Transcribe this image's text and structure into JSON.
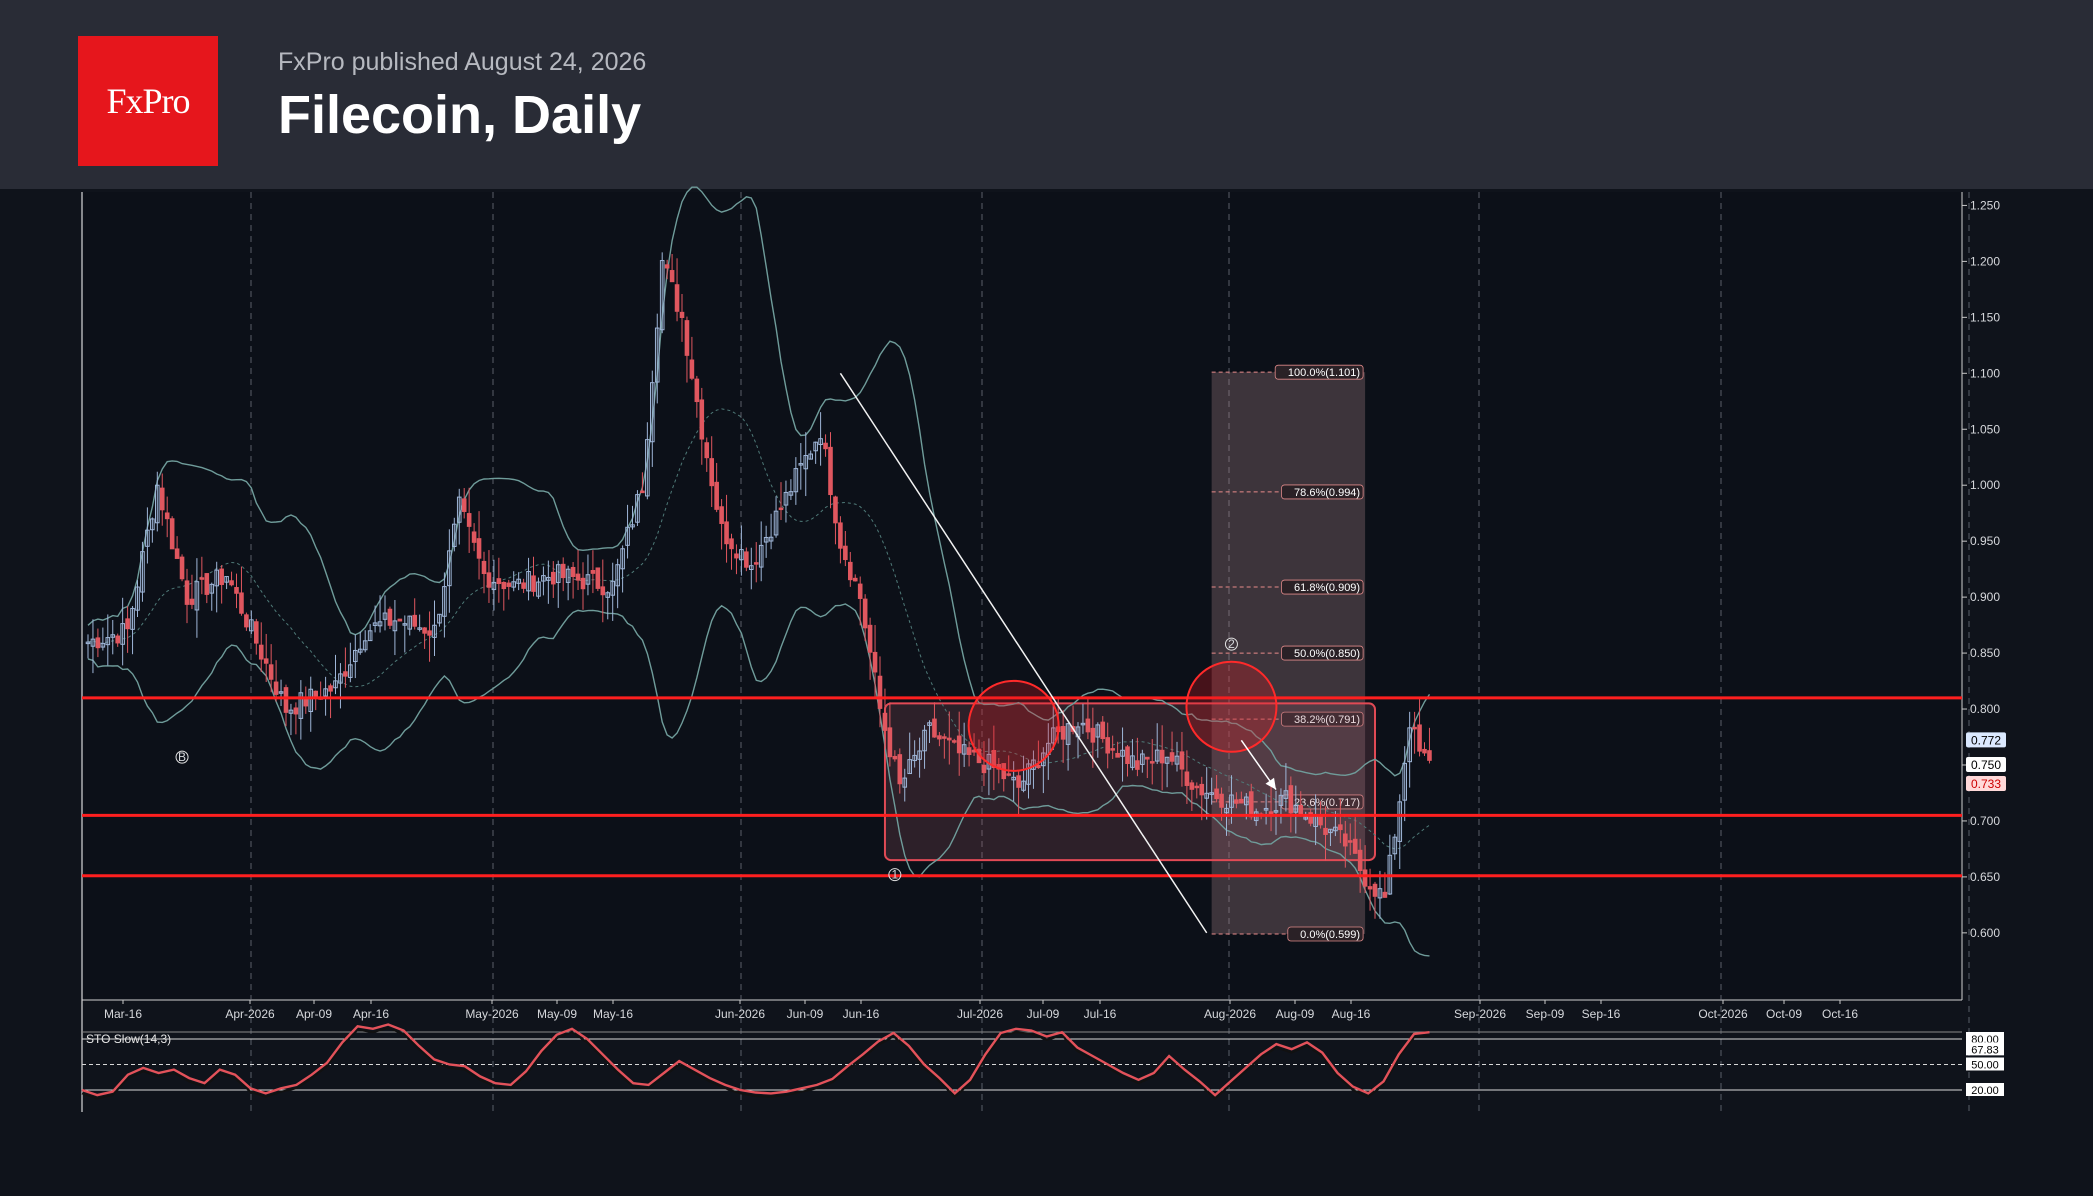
{
  "header": {
    "logo_text": "FxPro",
    "published": "FxPro published August 24, 2026",
    "title": "Filecoin, Daily"
  },
  "colors": {
    "background": "#0f131b",
    "header": "#292c36",
    "brand_red": "#e6161c",
    "bull": "#9fb6d8",
    "bear": "#e0575f",
    "band": "#6f9c9a",
    "level": "#ff1f1f"
  },
  "chart_data": [
    {
      "type": "candlestick",
      "title": "Filecoin, Daily",
      "ylim": [
        0.54,
        1.262
      ],
      "y_ticks": [
        "1.250",
        "1.200",
        "1.150",
        "1.100",
        "1.050",
        "1.000",
        "0.950",
        "0.900",
        "0.850",
        "0.800",
        "0.750",
        "0.700",
        "0.650",
        "0.600"
      ],
      "x_ticks": [
        "Mar-16",
        "Apr-2026",
        "Apr-09",
        "Apr-16",
        "May-2026",
        "May-09",
        "May-16",
        "Jun-2026",
        "Jun-09",
        "Jun-16",
        "Jul-2026",
        "Jul-09",
        "Jul-16",
        "Aug-2026",
        "Aug-09",
        "Aug-16",
        "Sep-2026",
        "Sep-09",
        "Sep-16",
        "Oct-2026",
        "Oct-09",
        "Oct-16"
      ],
      "close_path": [
        [
          0,
          0.86
        ],
        [
          8,
          0.87
        ],
        [
          14,
          1.0
        ],
        [
          20,
          0.9
        ],
        [
          28,
          0.92
        ],
        [
          34,
          0.86
        ],
        [
          40,
          0.8
        ],
        [
          50,
          0.82
        ],
        [
          56,
          0.87
        ],
        [
          62,
          0.88
        ],
        [
          70,
          0.87
        ],
        [
          75,
          0.98
        ],
        [
          80,
          0.92
        ],
        [
          86,
          0.91
        ],
        [
          94,
          0.92
        ],
        [
          100,
          0.915
        ],
        [
          106,
          0.91
        ],
        [
          112,
          1.0
        ],
        [
          116,
          1.2
        ],
        [
          120,
          1.15
        ],
        [
          124,
          1.05
        ],
        [
          128,
          0.96
        ],
        [
          134,
          0.93
        ],
        [
          140,
          0.98
        ],
        [
          148,
          1.05
        ],
        [
          152,
          0.95
        ],
        [
          156,
          0.9
        ],
        [
          160,
          0.8
        ],
        [
          164,
          0.73
        ],
        [
          170,
          0.78
        ],
        [
          176,
          0.76
        ],
        [
          182,
          0.75
        ],
        [
          188,
          0.73
        ],
        [
          194,
          0.77
        ],
        [
          200,
          0.79
        ],
        [
          206,
          0.77
        ],
        [
          212,
          0.75
        ],
        [
          218,
          0.76
        ],
        [
          224,
          0.73
        ],
        [
          230,
          0.72
        ],
        [
          236,
          0.71
        ],
        [
          242,
          0.72
        ],
        [
          248,
          0.7
        ],
        [
          254,
          0.68
        ],
        [
          258,
          0.65
        ],
        [
          262,
          0.63
        ],
        [
          265,
          0.72
        ],
        [
          267,
          0.79
        ],
        [
          269,
          0.76
        ],
        [
          271,
          0.75
        ]
      ],
      "annotations": {
        "horizontal_levels": [
          0.81,
          0.705,
          0.651
        ],
        "range_box": {
          "x": [
            161,
            260
          ],
          "y": [
            0.665,
            0.805
          ]
        },
        "fib_projection": {
          "x": [
            227,
            258
          ],
          "levels": [
            {
              "value": 1.101,
              "label": "100.0%(1.101)"
            },
            {
              "value": 0.994,
              "label": "78.6%(0.994)"
            },
            {
              "value": 0.909,
              "label": "61.8%(0.909)"
            },
            {
              "value": 0.85,
              "label": "50.0%(0.850)"
            },
            {
              "value": 0.791,
              "label": "38.2%(0.791)"
            },
            {
              "value": 0.717,
              "label": "23.6%(0.717)"
            },
            {
              "value": 0.599,
              "label": "0.0%(0.599)"
            }
          ]
        },
        "trendline": {
          "from": [
            152,
            1.1
          ],
          "to": [
            226,
            0.6
          ]
        },
        "circles": [
          {
            "x": 187,
            "y": 0.785
          },
          {
            "x": 231,
            "y": 0.802
          }
        ],
        "wave_labels": [
          {
            "text": "B",
            "x": 19,
            "y": 0.757
          },
          {
            "text": "1",
            "x": 163,
            "y": 0.652
          },
          {
            "text": "2",
            "x": 231,
            "y": 0.858
          }
        ],
        "arrow": {
          "from": [
            233,
            0.772
          ],
          "to": [
            240,
            0.728
          ]
        }
      },
      "price_labels": [
        "0.772",
        "0.750",
        "0.733"
      ]
    },
    {
      "type": "line",
      "title": "STO Slow(14,3)",
      "ylim": [
        0,
        100
      ],
      "y_ticks": [
        "80.00",
        "67.83",
        "50.00",
        "20.00"
      ],
      "values": [
        20,
        14,
        18,
        38,
        46,
        40,
        44,
        34,
        28,
        44,
        38,
        22,
        16,
        22,
        26,
        38,
        52,
        76,
        95,
        92,
        97,
        90,
        72,
        56,
        50,
        48,
        36,
        28,
        26,
        42,
        66,
        85,
        92,
        80,
        62,
        44,
        28,
        26,
        40,
        54,
        44,
        34,
        26,
        20,
        17,
        16,
        18,
        22,
        26,
        33,
        48,
        62,
        77,
        87,
        72,
        50,
        34,
        16,
        32,
        62,
        87,
        92,
        90,
        83,
        88,
        70,
        60,
        50,
        40,
        32,
        40,
        60,
        44,
        30,
        14,
        30,
        46,
        62,
        74,
        68,
        76,
        64,
        40,
        24,
        16,
        30,
        62,
        86,
        88
      ]
    }
  ]
}
